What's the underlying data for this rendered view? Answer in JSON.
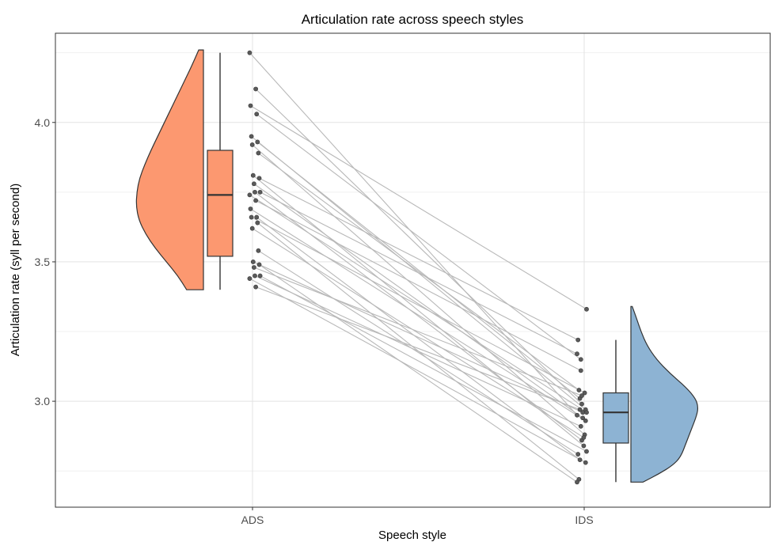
{
  "chart_data": {
    "type": "raincloud",
    "title": "Articulation rate across speech styles",
    "xlabel": "Speech style",
    "ylabel": "Articulation rate (syll per second)",
    "categories": [
      "ADS",
      "IDS"
    ],
    "ylim": [
      2.62,
      4.32
    ],
    "yticks": [
      3.0,
      3.5,
      4.0
    ],
    "ytick_labels": [
      "3.0",
      "3.5",
      "4.0"
    ],
    "grid": true,
    "colors": {
      "ADS": "#FC9870",
      "IDS": "#8DB3D3"
    },
    "boxplots": [
      {
        "category": "ADS",
        "min": 3.4,
        "q1": 3.52,
        "median": 3.74,
        "q3": 3.9,
        "max": 4.25
      },
      {
        "category": "IDS",
        "min": 2.71,
        "q1": 2.85,
        "median": 2.96,
        "q3": 3.03,
        "max": 3.22
      }
    ],
    "density": [
      {
        "category": "ADS",
        "side": "left",
        "range": [
          3.4,
          4.26
        ],
        "curve": [
          [
            3.4,
            0.25
          ],
          [
            3.45,
            0.38
          ],
          [
            3.5,
            0.55
          ],
          [
            3.55,
            0.72
          ],
          [
            3.6,
            0.86
          ],
          [
            3.65,
            0.96
          ],
          [
            3.7,
            1.0
          ],
          [
            3.75,
            0.99
          ],
          [
            3.8,
            0.95
          ],
          [
            3.85,
            0.87
          ],
          [
            3.9,
            0.78
          ],
          [
            3.95,
            0.68
          ],
          [
            4.0,
            0.58
          ],
          [
            4.05,
            0.48
          ],
          [
            4.1,
            0.38
          ],
          [
            4.15,
            0.28
          ],
          [
            4.2,
            0.18
          ],
          [
            4.26,
            0.07
          ]
        ]
      },
      {
        "category": "IDS",
        "side": "right",
        "range": [
          2.71,
          3.34
        ],
        "curve": [
          [
            2.71,
            0.18
          ],
          [
            2.74,
            0.42
          ],
          [
            2.77,
            0.62
          ],
          [
            2.8,
            0.74
          ],
          [
            2.85,
            0.82
          ],
          [
            2.9,
            0.9
          ],
          [
            2.95,
            0.98
          ],
          [
            2.98,
            1.0
          ],
          [
            3.01,
            0.96
          ],
          [
            3.05,
            0.82
          ],
          [
            3.1,
            0.58
          ],
          [
            3.15,
            0.38
          ],
          [
            3.2,
            0.24
          ],
          [
            3.25,
            0.15
          ],
          [
            3.3,
            0.08
          ],
          [
            3.34,
            0.02
          ]
        ]
      }
    ],
    "pairs": [
      [
        4.25,
        2.95
      ],
      [
        4.12,
        2.99
      ],
      [
        4.06,
        3.33
      ],
      [
        4.03,
        3.15
      ],
      [
        3.95,
        2.97
      ],
      [
        3.93,
        3.01
      ],
      [
        3.92,
        2.88
      ],
      [
        3.89,
        3.04
      ],
      [
        3.81,
        2.84
      ],
      [
        3.8,
        3.22
      ],
      [
        3.78,
        2.94
      ],
      [
        3.75,
        3.17
      ],
      [
        3.75,
        2.86
      ],
      [
        3.74,
        2.96
      ],
      [
        3.72,
        3.11
      ],
      [
        3.69,
        2.93
      ],
      [
        3.66,
        2.79
      ],
      [
        3.66,
        3.03
      ],
      [
        3.64,
        2.72
      ],
      [
        3.62,
        2.87
      ],
      [
        3.54,
        2.81
      ],
      [
        3.5,
        2.96
      ],
      [
        3.49,
        2.71
      ],
      [
        3.48,
        3.02
      ],
      [
        3.45,
        2.82
      ],
      [
        3.45,
        2.91
      ],
      [
        3.44,
        2.78
      ],
      [
        3.41,
        2.97
      ]
    ]
  }
}
